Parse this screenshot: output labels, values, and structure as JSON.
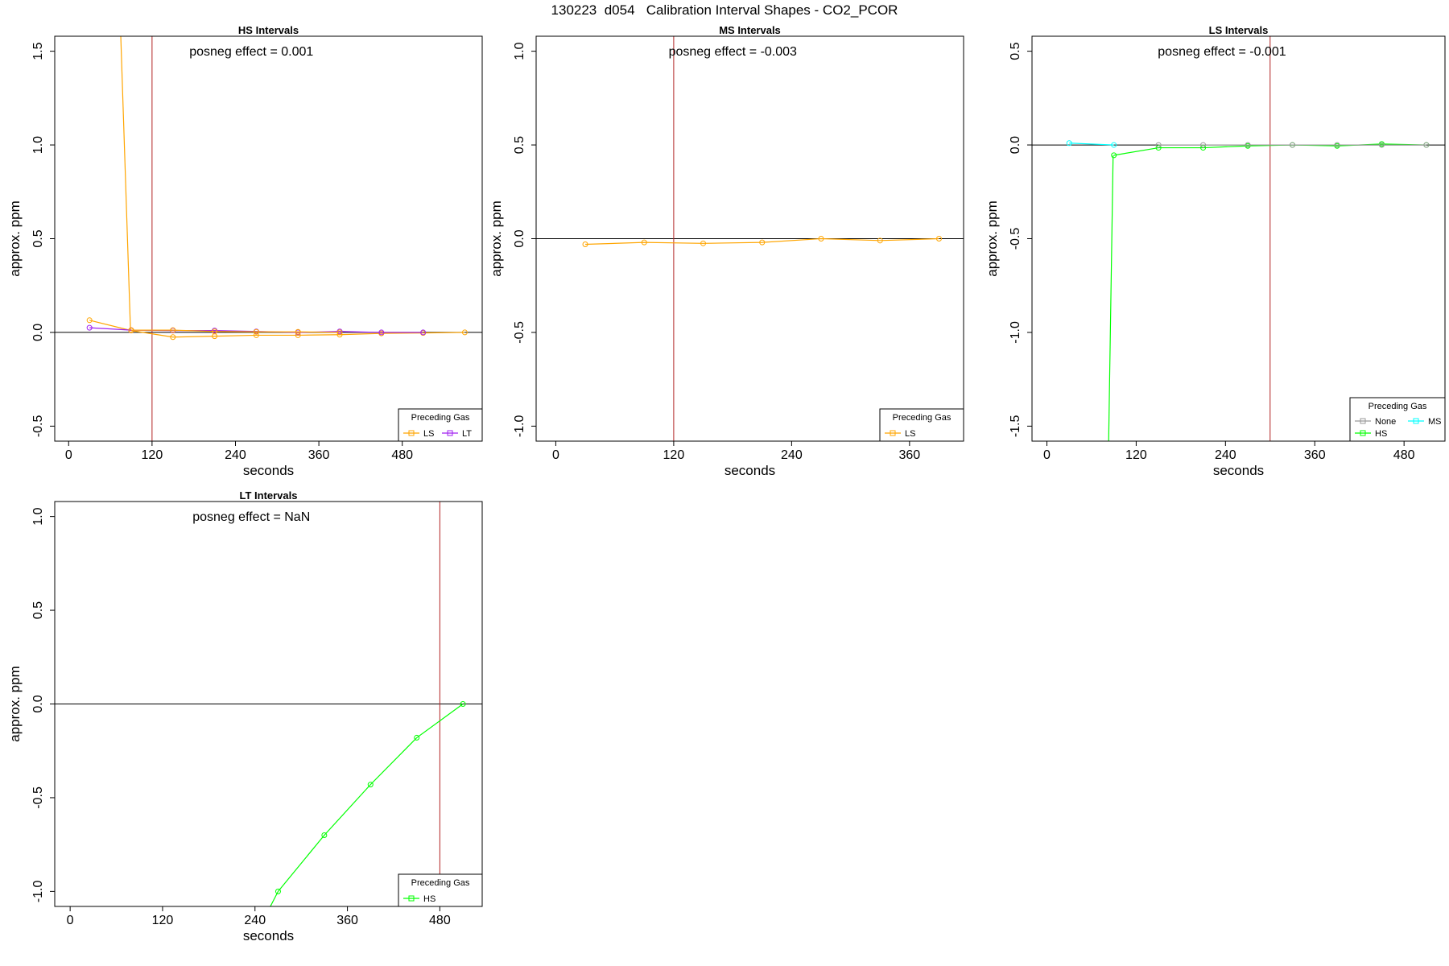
{
  "figure": {
    "title": "130223  d054   Calibration Interval Shapes - CO2_PCOR"
  },
  "colors": {
    "LS": "#FFA500",
    "LT": "#A020F0",
    "HS": "#00FF00",
    "MS": "#00FFFF",
    "None": "#999999",
    "refline": "#B22222",
    "axis": "#000000"
  },
  "chart_data": [
    {
      "id": "hs",
      "type": "line",
      "title": "HS Intervals",
      "xlabel": "seconds",
      "ylabel": "approx. ppm",
      "xlim": [
        -20,
        595
      ],
      "ylim": [
        -0.58,
        1.58
      ],
      "xticks": [
        0,
        120,
        240,
        360,
        480
      ],
      "xtick_labels": [
        "0",
        "120",
        "240",
        "360",
        "480"
      ],
      "yticks": [
        -0.5,
        0.0,
        0.5,
        1.0,
        1.5
      ],
      "ytick_labels": [
        "-0.5",
        "0.0",
        "0.5",
        "1.0",
        "1.5"
      ],
      "vline": 120,
      "annotation": "posneg effect = 0.001",
      "legend": {
        "title": "Preceding Gas",
        "position": "bottom-right",
        "entries": [
          "LS",
          "LT"
        ]
      },
      "series": [
        {
          "name": "LS",
          "color": "#FFA500",
          "clip_first_segment": true,
          "x": [
            30,
            90,
            150,
            210,
            270,
            330,
            390,
            450,
            510,
            570
          ],
          "y": [
            0.065,
            0.01,
            -0.025,
            -0.02,
            -0.015,
            -0.015,
            -0.012,
            -0.005,
            -0.003,
            0.0
          ],
          "extra": {
            "x": [
              75,
              89
            ],
            "y": [
              1.58,
              0.01
            ]
          }
        },
        {
          "name": "LT",
          "color": "#A020F0",
          "x": [
            30,
            90,
            150,
            210,
            270,
            330,
            390,
            450,
            510
          ],
          "y": [
            0.025,
            0.012,
            0.01,
            0.01,
            0.005,
            0.0,
            0.005,
            0.0,
            0.0
          ]
        },
        {
          "name": "LS",
          "color": "#FFA500",
          "hidden_legend": true,
          "x": [
            90,
            150,
            210,
            270,
            330,
            390
          ],
          "y": [
            0.012,
            0.012,
            0.005,
            0.003,
            0.003,
            0.0
          ]
        }
      ]
    },
    {
      "id": "ms",
      "type": "line",
      "title": "MS Intervals",
      "xlabel": "seconds",
      "ylabel": "approx. ppm",
      "xlim": [
        -20,
        415
      ],
      "ylim": [
        -1.08,
        1.08
      ],
      "xticks": [
        0,
        120,
        240,
        360
      ],
      "xtick_labels": [
        "0",
        "120",
        "240",
        "360"
      ],
      "yticks": [
        -1.0,
        -0.5,
        0.0,
        0.5,
        1.0
      ],
      "ytick_labels": [
        "-1.0",
        "-0.5",
        "0.0",
        "0.5",
        "1.0"
      ],
      "vline": 120,
      "annotation": "posneg effect = -0.003",
      "legend": {
        "title": "Preceding Gas",
        "position": "bottom-right",
        "entries": [
          "LS"
        ]
      },
      "series": [
        {
          "name": "LS",
          "color": "#FFA500",
          "x": [
            30,
            90,
            150,
            210,
            270,
            330,
            390
          ],
          "y": [
            -0.03,
            -0.02,
            -0.025,
            -0.02,
            0.0,
            -0.01,
            0.0
          ]
        }
      ]
    },
    {
      "id": "ls",
      "type": "line",
      "title": "LS Intervals",
      "xlabel": "seconds",
      "ylabel": "approx. ppm",
      "xlim": [
        -20,
        535
      ],
      "ylim": [
        -1.58,
        0.58
      ],
      "xticks": [
        0,
        120,
        240,
        360,
        480
      ],
      "xtick_labels": [
        "0",
        "120",
        "240",
        "360",
        "480"
      ],
      "yticks": [
        -1.5,
        -1.0,
        -0.5,
        0.0,
        0.5
      ],
      "ytick_labels": [
        "-1.5",
        "-1.0",
        "-0.5",
        "0.0",
        "0.5"
      ],
      "vline": 300,
      "annotation": "posneg effect = -0.001",
      "legend": {
        "title": "Preceding Gas",
        "position": "bottom-right",
        "entries": [
          "None",
          "MS",
          "HS"
        ]
      },
      "series": [
        {
          "name": "MS",
          "color": "#00FFFF",
          "x": [
            30,
            90
          ],
          "y": [
            0.01,
            0.0
          ]
        },
        {
          "name": "HS",
          "color": "#00FF00",
          "x": [
            90,
            150,
            210,
            270,
            330,
            390,
            450,
            510
          ],
          "y": [
            -0.055,
            -0.015,
            -0.015,
            -0.005,
            0.0,
            -0.005,
            0.005,
            0.0
          ],
          "extra": {
            "x": [
              83,
              89
            ],
            "y": [
              -1.58,
              -0.055
            ]
          }
        },
        {
          "name": "None",
          "color": "#999999",
          "x": [
            150,
            210,
            270,
            330,
            390,
            450,
            510
          ],
          "y": [
            0.0,
            0.0,
            0.0,
            0.0,
            0.0,
            0.0,
            0.0
          ]
        }
      ]
    },
    {
      "id": "lt",
      "type": "line",
      "title": "LT Intervals",
      "xlabel": "seconds",
      "ylabel": "approx. ppm",
      "xlim": [
        -20,
        535
      ],
      "ylim": [
        -1.08,
        1.08
      ],
      "xticks": [
        0,
        120,
        240,
        360,
        480
      ],
      "xtick_labels": [
        "0",
        "120",
        "240",
        "360",
        "480"
      ],
      "yticks": [
        -1.0,
        -0.5,
        0.0,
        0.5,
        1.0
      ],
      "ytick_labels": [
        "-1.0",
        "-0.5",
        "0.0",
        "0.5",
        "1.0"
      ],
      "vline": 480,
      "annotation": "posneg effect = NaN",
      "legend": {
        "title": "Preceding Gas",
        "position": "bottom-right",
        "entries": [
          "HS"
        ]
      },
      "series": [
        {
          "name": "HS",
          "color": "#00FF00",
          "x": [
            270,
            330,
            390,
            450,
            510
          ],
          "y": [
            -1.0,
            -0.7,
            -0.43,
            -0.18,
            0.0
          ],
          "extra": {
            "x": [
              260,
              270
            ],
            "y": [
              -1.08,
              -1.0
            ]
          }
        }
      ]
    }
  ]
}
